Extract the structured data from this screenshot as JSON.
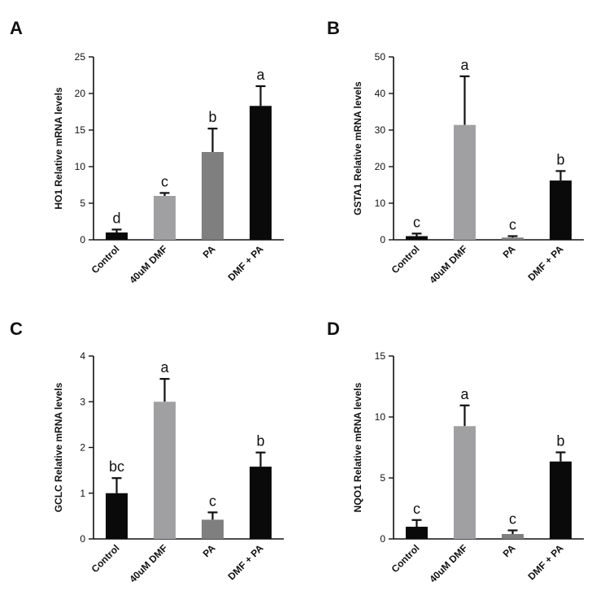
{
  "colors": {
    "control": "#0a0a0a",
    "dmf": "#a0a0a3",
    "pa": "#7f7f80",
    "dmf_pa": "#0a0a0a",
    "axis": "#111111"
  },
  "chart_data": [
    {
      "type": "bar",
      "panel_label": "A",
      "ylabel": "HO1 Relative mRNA levels",
      "categories": [
        "Control",
        "40uM DMF",
        "PA",
        "DMF + PA"
      ],
      "values": [
        1.0,
        6.0,
        12.0,
        18.3
      ],
      "errors": [
        0.4,
        0.4,
        3.2,
        2.7
      ],
      "significance": [
        "d",
        "c",
        "b",
        "a"
      ],
      "ylim": [
        0,
        25
      ],
      "yticks": [
        0,
        5,
        10,
        15,
        20,
        25
      ],
      "ytick_labels": [
        "0",
        "5",
        "10",
        "15",
        "20",
        "25"
      ],
      "colors": [
        "#0a0a0a",
        "#a0a0a3",
        "#7f7f80",
        "#0a0a0a"
      ]
    },
    {
      "type": "bar",
      "panel_label": "B",
      "ylabel": "GSTA1 Relative mRNA  levels",
      "categories": [
        "Control",
        "40uM DMF",
        "PA",
        "DMF + PA"
      ],
      "values": [
        1.0,
        31.4,
        0.6,
        16.2
      ],
      "errors": [
        0.7,
        13.3,
        0.4,
        2.6
      ],
      "significance": [
        "c",
        "a",
        "c",
        "b"
      ],
      "ylim": [
        0,
        50
      ],
      "yticks": [
        0,
        10,
        20,
        30,
        40,
        50
      ],
      "ytick_labels": [
        "0",
        "10",
        "20",
        "30",
        "40",
        "50"
      ],
      "colors": [
        "#0a0a0a",
        "#a0a0a3",
        "#7f7f80",
        "#0a0a0a"
      ]
    },
    {
      "type": "bar",
      "panel_label": "C",
      "ylabel": "GCLC Relative mRNA levels",
      "categories": [
        "Control",
        "40uM DMF",
        "PA",
        "DMF + PA"
      ],
      "values": [
        1.0,
        3.0,
        0.42,
        1.58
      ],
      "errors": [
        0.33,
        0.5,
        0.16,
        0.31
      ],
      "significance": [
        "bc",
        "a",
        "c",
        "b"
      ],
      "ylim": [
        0,
        4
      ],
      "yticks": [
        0,
        1,
        2,
        3,
        4
      ],
      "ytick_labels": [
        "0",
        "1",
        "2",
        "3",
        "4"
      ],
      "colors": [
        "#0a0a0a",
        "#a0a0a3",
        "#7f7f80",
        "#0a0a0a"
      ]
    },
    {
      "type": "bar",
      "panel_label": "D",
      "ylabel": "NQO1 Relative mRNA levels",
      "categories": [
        "Control",
        "40uM DMF",
        "PA",
        "DMF + PA"
      ],
      "values": [
        1.0,
        9.25,
        0.4,
        6.35
      ],
      "errors": [
        0.55,
        1.7,
        0.3,
        0.75
      ],
      "significance": [
        "c",
        "a",
        "c",
        "b"
      ],
      "ylim": [
        0,
        15
      ],
      "yticks": [
        0,
        5,
        10,
        15
      ],
      "ytick_labels": [
        "0",
        "5",
        "10",
        "15"
      ],
      "colors": [
        "#0a0a0a",
        "#a0a0a3",
        "#7f7f80",
        "#0a0a0a"
      ]
    }
  ]
}
